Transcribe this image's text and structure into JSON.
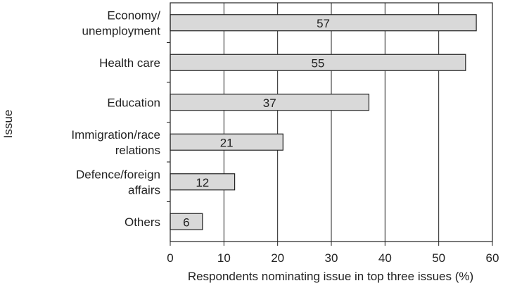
{
  "chart_data": {
    "type": "bar",
    "orientation": "horizontal",
    "categories": [
      [
        "Economy/",
        "unemployment"
      ],
      [
        "Health care"
      ],
      [
        "Education"
      ],
      [
        "Immigration/race",
        "relations"
      ],
      [
        "Defence/foreign",
        "affairs"
      ],
      [
        "Others"
      ]
    ],
    "values": [
      57,
      55,
      37,
      21,
      12,
      6
    ],
    "data_labels": [
      "57",
      "55",
      "37",
      "21",
      "12",
      "6"
    ],
    "title": "",
    "xlabel": "Respondents nominating issue in top three issues (%)",
    "ylabel": "Issue",
    "xlim": [
      0,
      60
    ],
    "xticks": [
      0,
      10,
      20,
      30,
      40,
      50,
      60
    ],
    "grid": "vertical",
    "legend": "none",
    "colors": {
      "bar_fill": "#d9d9d9",
      "bar_stroke": "#222222",
      "grid": "#222222",
      "axis": "#222222"
    }
  }
}
